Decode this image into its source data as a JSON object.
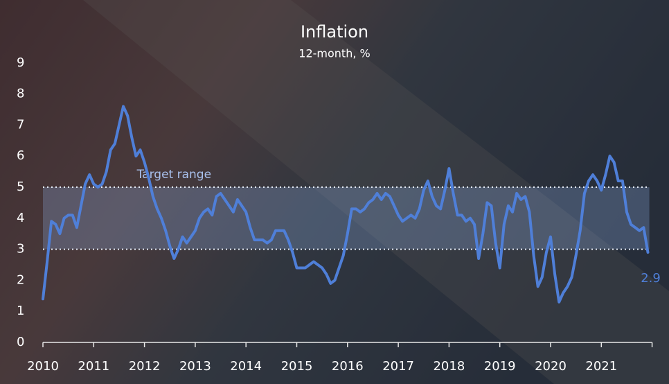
{
  "chart_data": {
    "type": "line",
    "title": "Inflation",
    "subtitle": "12-month, %",
    "x": [
      2010,
      2010.083,
      2010.167,
      2010.25,
      2010.333,
      2010.417,
      2010.5,
      2010.583,
      2010.667,
      2010.75,
      2010.833,
      2010.917,
      2011,
      2011.083,
      2011.167,
      2011.25,
      2011.333,
      2011.417,
      2011.5,
      2011.583,
      2011.667,
      2011.75,
      2011.833,
      2011.917,
      2012,
      2012.083,
      2012.167,
      2012.25,
      2012.333,
      2012.417,
      2012.5,
      2012.583,
      2012.667,
      2012.75,
      2012.833,
      2012.917,
      2013,
      2013.083,
      2013.167,
      2013.25,
      2013.333,
      2013.417,
      2013.5,
      2013.583,
      2013.667,
      2013.75,
      2013.833,
      2013.917,
      2014,
      2014.083,
      2014.167,
      2014.25,
      2014.333,
      2014.417,
      2014.5,
      2014.583,
      2014.667,
      2014.75,
      2014.833,
      2014.917,
      2015,
      2015.083,
      2015.167,
      2015.25,
      2015.333,
      2015.417,
      2015.5,
      2015.583,
      2015.667,
      2015.75,
      2015.833,
      2015.917,
      2016,
      2016.083,
      2016.167,
      2016.25,
      2016.333,
      2016.417,
      2016.5,
      2016.583,
      2016.667,
      2016.75,
      2016.833,
      2016.917,
      2017,
      2017.083,
      2017.167,
      2017.25,
      2017.333,
      2017.417,
      2017.5,
      2017.583,
      2017.667,
      2017.75,
      2017.833,
      2017.917,
      2018,
      2018.083,
      2018.167,
      2018.25,
      2018.333,
      2018.417,
      2018.5,
      2018.583,
      2018.667,
      2018.75,
      2018.833,
      2018.917,
      2019,
      2019.083,
      2019.167,
      2019.25,
      2019.333,
      2019.417,
      2019.5,
      2019.583,
      2019.667,
      2019.75,
      2019.833,
      2019.917,
      2020,
      2020.083,
      2020.167,
      2020.25,
      2020.333,
      2020.417,
      2020.5,
      2020.583,
      2020.667,
      2020.75,
      2020.833,
      2020.917,
      2021,
      2021.083,
      2021.167,
      2021.25,
      2021.333,
      2021.417,
      2021.5,
      2021.583,
      2021.667,
      2021.75,
      2021.833,
      2021.917
    ],
    "values": [
      1.4,
      2.6,
      3.9,
      3.8,
      3.5,
      4.0,
      4.1,
      4.1,
      3.7,
      4.4,
      5.1,
      5.4,
      5.1,
      5.0,
      5.1,
      5.5,
      6.2,
      6.4,
      7.0,
      7.6,
      7.3,
      6.6,
      6.0,
      6.2,
      5.8,
      5.3,
      4.7,
      4.3,
      4.0,
      3.6,
      3.1,
      2.7,
      3.0,
      3.4,
      3.2,
      3.4,
      3.6,
      4.0,
      4.2,
      4.3,
      4.1,
      4.7,
      4.8,
      4.6,
      4.4,
      4.2,
      4.6,
      4.4,
      4.2,
      3.7,
      3.3,
      3.3,
      3.3,
      3.2,
      3.3,
      3.6,
      3.6,
      3.6,
      3.3,
      2.9,
      2.4,
      2.4,
      2.4,
      2.5,
      2.6,
      2.5,
      2.4,
      2.2,
      1.9,
      2.0,
      2.4,
      2.8,
      3.5,
      4.3,
      4.3,
      4.2,
      4.3,
      4.5,
      4.6,
      4.8,
      4.6,
      4.8,
      4.7,
      4.4,
      4.1,
      3.9,
      4.0,
      4.1,
      4.0,
      4.3,
      4.9,
      5.2,
      4.7,
      4.4,
      4.3,
      4.9,
      5.6,
      4.8,
      4.1,
      4.1,
      3.9,
      4.0,
      3.8,
      2.7,
      3.5,
      4.5,
      4.4,
      3.2,
      2.4,
      3.8,
      4.4,
      4.2,
      4.8,
      4.6,
      4.7,
      4.2,
      2.8,
      1.8,
      2.1,
      2.9,
      3.4,
      2.2,
      1.3,
      1.6,
      1.8,
      2.1,
      2.8,
      3.6,
      4.8,
      5.2,
      5.4,
      5.2,
      4.9,
      5.4,
      6.0,
      5.8,
      5.2,
      5.2,
      4.2,
      3.8,
      3.7,
      3.6,
      3.7,
      2.9
    ],
    "color": "#4f7fd8",
    "xlim": [
      2010,
      2022
    ],
    "xticks": [
      2010,
      2011,
      2012,
      2013,
      2014,
      2015,
      2016,
      2017,
      2018,
      2019,
      2020,
      2021
    ],
    "ylim": [
      0,
      9.5
    ],
    "yticks": [
      0,
      1,
      2,
      3,
      4,
      5,
      6,
      7,
      8,
      9
    ],
    "bands": [
      {
        "label": "Target range",
        "from": 3,
        "to": 5
      }
    ]
  }
}
